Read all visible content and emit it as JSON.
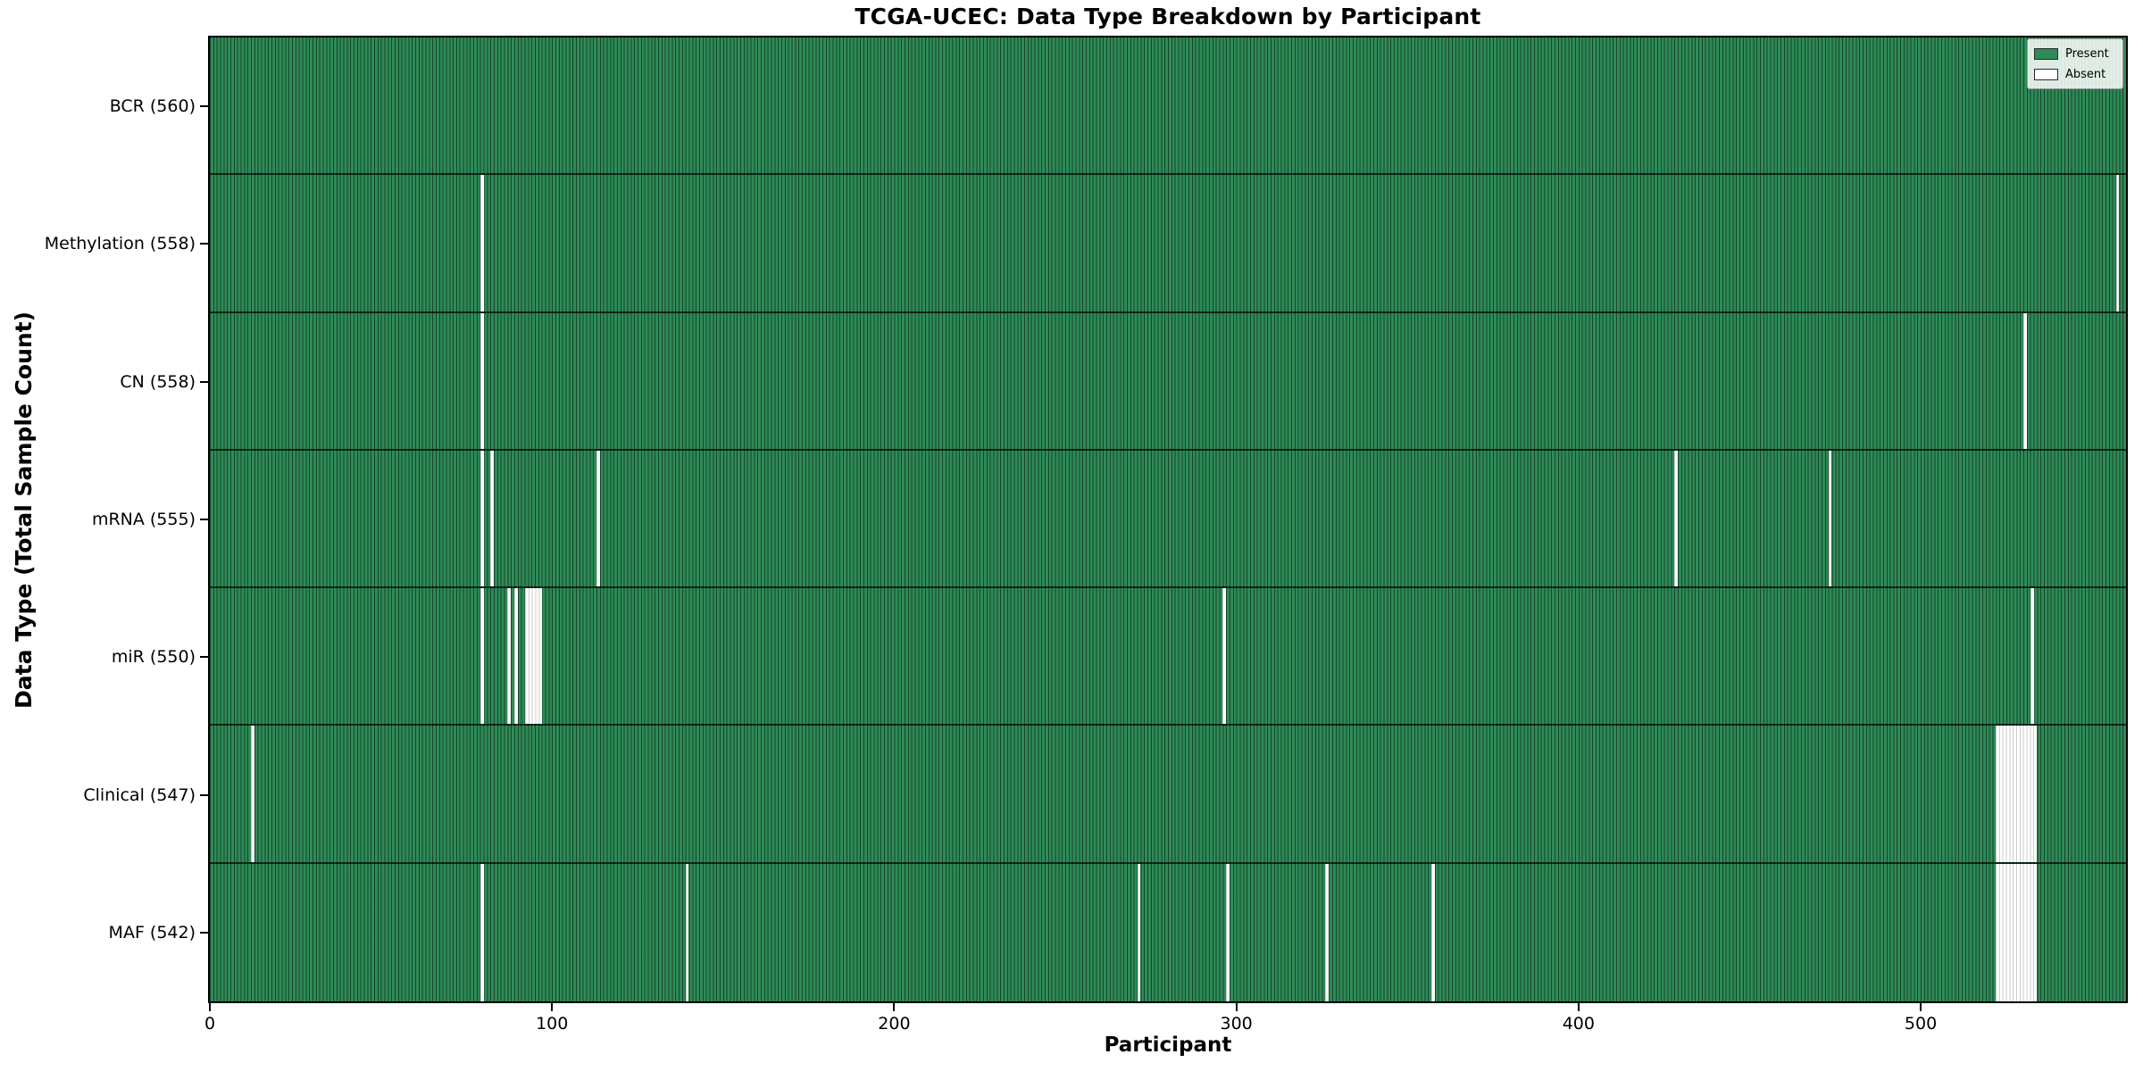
{
  "chart_data": {
    "type": "heatmap",
    "title": "TCGA-UCEC: Data Type Breakdown by Participant",
    "xlabel": "Participant",
    "ylabel": "Data Type (Total Sample Count)",
    "xlim": [
      0,
      560
    ],
    "x_ticks": [
      0,
      100,
      200,
      300,
      400,
      500
    ],
    "grid": false,
    "legend": [
      "Present",
      "Absent"
    ],
    "legend_position": "upper right",
    "colors": {
      "present": "#2e8b57",
      "absent": "#ffffff",
      "cell_edge": "rgba(0,0,0,0.5)",
      "absent_cell_edge": "rgba(0,0,0,0.2)",
      "row_separator": "rgba(0,0,0,0.7)"
    },
    "total_participants": 560,
    "rows": [
      {
        "data_type": "BCR",
        "label": "BCR (560)",
        "present_count": 560,
        "absent_participants": []
      },
      {
        "data_type": "Methylation",
        "label": "Methylation (558)",
        "present_count": 558,
        "absent_participants": [
          79,
          557
        ]
      },
      {
        "data_type": "CN",
        "label": "CN (558)",
        "present_count": 558,
        "absent_participants": [
          79,
          530
        ]
      },
      {
        "data_type": "mRNA",
        "label": "mRNA (555)",
        "present_count": 555,
        "absent_participants": [
          79,
          82,
          113,
          428,
          473
        ]
      },
      {
        "data_type": "miR",
        "label": "miR (550)",
        "present_count": 550,
        "absent_participants": [
          79,
          87,
          89,
          92,
          93,
          94,
          95,
          96,
          296,
          532
        ]
      },
      {
        "data_type": "Clinical",
        "label": "Clinical (547)",
        "present_count": 547,
        "absent_participants": [
          12,
          522,
          523,
          524,
          525,
          526,
          527,
          528,
          529,
          530,
          531,
          532,
          533
        ]
      },
      {
        "data_type": "MAF",
        "label": "MAF (542)",
        "present_count": 542,
        "absent_participants": [
          79,
          139,
          271,
          297,
          326,
          357,
          522,
          523,
          524,
          525,
          526,
          527,
          528,
          529,
          530,
          531,
          532,
          533
        ]
      }
    ]
  }
}
